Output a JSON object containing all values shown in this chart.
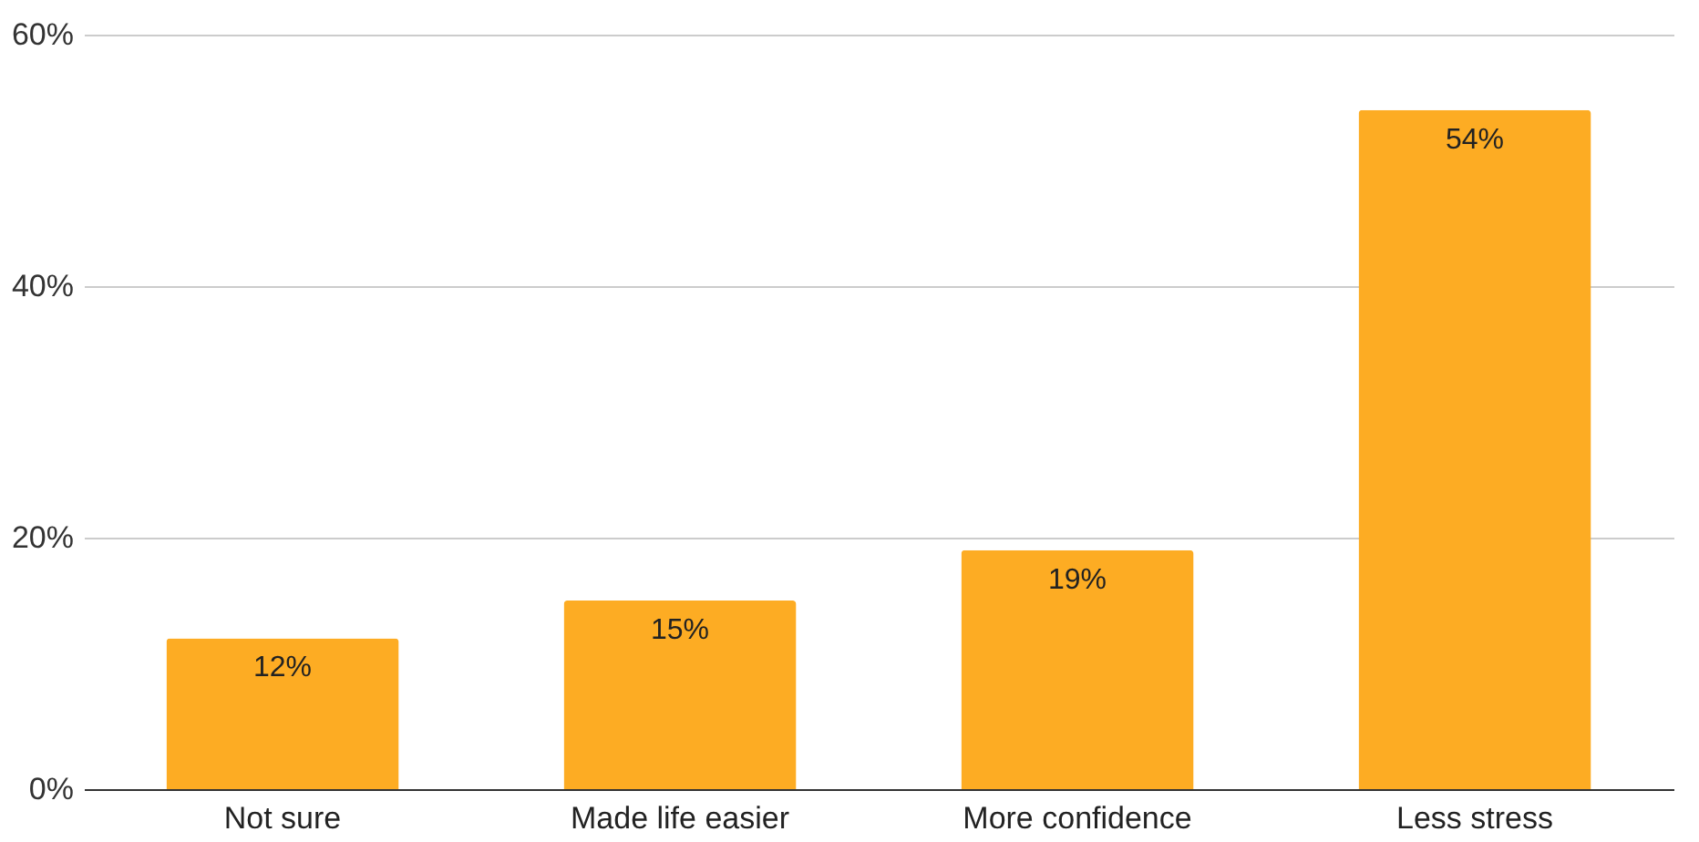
{
  "chart_data": {
    "type": "bar",
    "categories": [
      "Not sure",
      "Made life easier",
      "More confidence",
      "Less stress"
    ],
    "values": [
      12,
      15,
      19,
      54
    ],
    "value_labels": [
      "12%",
      "15%",
      "19%",
      "54%"
    ],
    "color": "#fdac23",
    "ylim": [
      0,
      60
    ],
    "yticks": [
      {
        "value": 0,
        "label": "0%"
      },
      {
        "value": 20,
        "label": "20%"
      },
      {
        "value": 40,
        "label": "40%"
      },
      {
        "value": 60,
        "label": "60%"
      }
    ],
    "grid": "y"
  }
}
